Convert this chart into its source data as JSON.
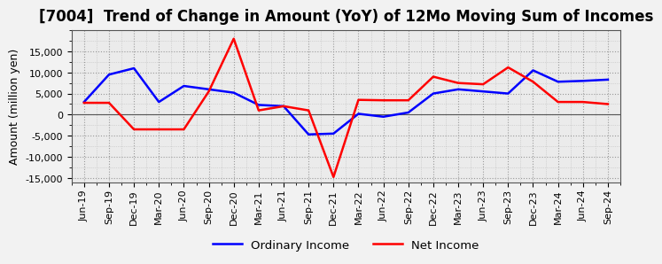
{
  "title": "[7004]  Trend of Change in Amount (YoY) of 12Mo Moving Sum of Incomes",
  "ylabel": "Amount (million yen)",
  "x_labels": [
    "Jun-19",
    "Sep-19",
    "Dec-19",
    "Mar-20",
    "Jun-20",
    "Sep-20",
    "Dec-20",
    "Mar-21",
    "Jun-21",
    "Sep-21",
    "Dec-21",
    "Mar-22",
    "Jun-22",
    "Sep-22",
    "Dec-22",
    "Mar-23",
    "Jun-23",
    "Sep-23",
    "Dec-23",
    "Mar-24",
    "Jun-24",
    "Sep-24"
  ],
  "ordinary_income": [
    3000,
    9500,
    11000,
    3000,
    6800,
    6000,
    5200,
    2300,
    2000,
    -4700,
    -4500,
    200,
    -500,
    500,
    5000,
    6000,
    5500,
    5000,
    10500,
    7800,
    8000,
    8300
  ],
  "net_income": [
    2800,
    2800,
    -3500,
    -3500,
    -3500,
    5500,
    18000,
    1000,
    2000,
    1000,
    -14800,
    3500,
    3400,
    3400,
    9000,
    7500,
    7200,
    11200,
    7800,
    3000,
    3000,
    2500
  ],
  "ordinary_income_color": "#0000ff",
  "net_income_color": "#ff0000",
  "ylim": [
    -16000,
    20000
  ],
  "yticks": [
    -15000,
    -10000,
    -5000,
    0,
    5000,
    10000,
    15000
  ],
  "background_color": "#f0f0f0",
  "plot_bg_color": "#e8e8e8",
  "grid_color": "#999999",
  "legend_ordinary": "Ordinary Income",
  "legend_net": "Net Income",
  "title_fontsize": 12,
  "axis_fontsize": 9,
  "tick_fontsize": 8
}
